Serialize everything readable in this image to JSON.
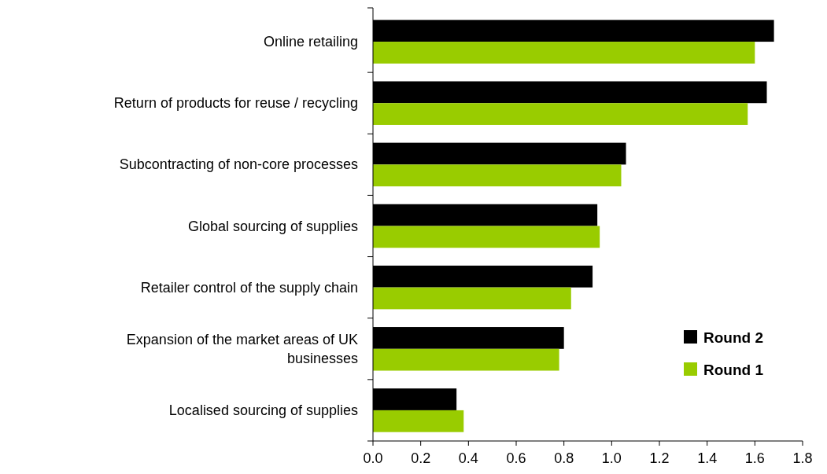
{
  "chart_data": {
    "type": "bar",
    "orientation": "horizontal",
    "categories": [
      "Online retailing",
      "Return of products for reuse / recycling",
      "Subcontracting of non-core processes",
      "Global sourcing of supplies",
      "Retailer control of the supply chain",
      "Expansion of the market areas of UK businesses",
      "Localised sourcing of supplies"
    ],
    "series": [
      {
        "name": "Round 2",
        "color": "#000000",
        "values": [
          1.68,
          1.65,
          1.06,
          0.94,
          0.92,
          0.8,
          0.35
        ]
      },
      {
        "name": "Round 1",
        "color": "#99cc00",
        "values": [
          1.6,
          1.57,
          1.04,
          0.95,
          0.83,
          0.78,
          0.38
        ]
      }
    ],
    "xlim": [
      0,
      1.8
    ],
    "xticks": [
      {
        "value": 0,
        "label": "0.0"
      },
      0.2,
      0.4,
      0.6,
      0.8,
      {
        "value": 1,
        "label": "1.0"
      },
      1.2,
      1.4,
      1.6,
      1.8
    ],
    "legend": "right",
    "grid": false
  }
}
